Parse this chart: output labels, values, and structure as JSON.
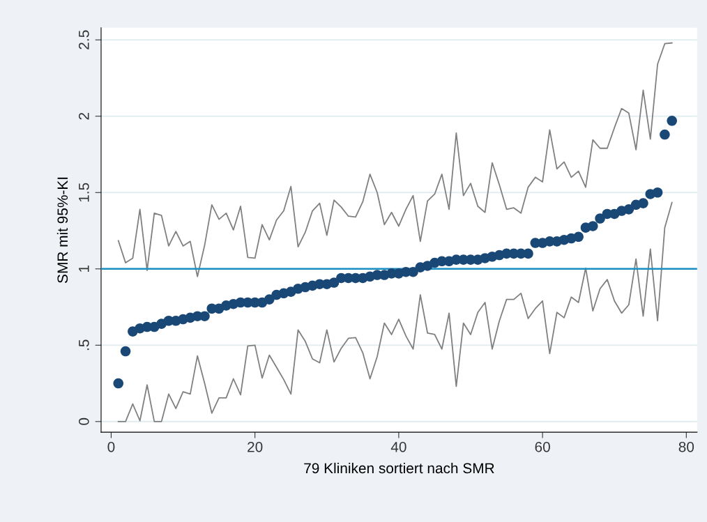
{
  "chart_data": {
    "type": "scatter",
    "xlabel": "79 Kliniken sortiert nach SMR",
    "ylabel": "SMR mit 95%-KI",
    "xlim": [
      -1.4,
      81.5
    ],
    "xticks": [
      0,
      20,
      40,
      60,
      80
    ],
    "ylim": [
      -0.07,
      2.58
    ],
    "yticks": [
      0,
      {
        "value": 0.5,
        "label": ".5"
      },
      1,
      1.5,
      2,
      2.5
    ],
    "grid": "y",
    "legend": false,
    "marker": "circle",
    "x": [
      1,
      2,
      3,
      4,
      5,
      6,
      7,
      8,
      9,
      10,
      11,
      12,
      13,
      14,
      15,
      16,
      17,
      18,
      19,
      20,
      21,
      22,
      23,
      24,
      25,
      26,
      27,
      28,
      29,
      30,
      31,
      32,
      33,
      34,
      35,
      36,
      37,
      38,
      39,
      40,
      41,
      42,
      43,
      44,
      45,
      46,
      47,
      48,
      49,
      50,
      51,
      52,
      53,
      54,
      55,
      56,
      57,
      58,
      59,
      60,
      61,
      62,
      63,
      64,
      65,
      66,
      67,
      68,
      69,
      70,
      71,
      72,
      73,
      74,
      75,
      76,
      77,
      78
    ],
    "series": [
      {
        "type": "line",
        "color": "#808080",
        "marker": "none",
        "line_style": "solid",
        "values": [
          1.185,
          1.04,
          1.07,
          1.39,
          0.99,
          1.365,
          1.35,
          1.15,
          1.245,
          1.15,
          1.18,
          0.95,
          1.155,
          1.42,
          1.325,
          1.365,
          1.255,
          1.41,
          1.075,
          1.07,
          1.29,
          1.19,
          1.32,
          1.38,
          1.54,
          1.145,
          1.24,
          1.38,
          1.43,
          1.22,
          1.45,
          1.405,
          1.345,
          1.34,
          1.44,
          1.62,
          1.5,
          1.29,
          1.37,
          1.28,
          1.39,
          1.48,
          1.18,
          1.445,
          1.49,
          1.62,
          1.39,
          1.89,
          1.48,
          1.56,
          1.41,
          1.37,
          1.695,
          1.55,
          1.39,
          1.4,
          1.365,
          1.535,
          1.6,
          1.57,
          1.91,
          1.655,
          1.7,
          1.6,
          1.64,
          1.535,
          1.845,
          1.79,
          1.79,
          1.925,
          2.05,
          2.02,
          1.78,
          2.17,
          1.85,
          2.34,
          2.475,
          2.48
        ]
      },
      {
        "type": "line",
        "color": "#808080",
        "marker": "none",
        "line_style": "solid",
        "values": [
          0,
          0,
          0.115,
          0.005,
          0.24,
          0,
          0,
          0.18,
          0.085,
          0.195,
          0.18,
          0.43,
          0.25,
          0.055,
          0.155,
          0.155,
          0.28,
          0.175,
          0.495,
          0.5,
          0.285,
          0.435,
          0.355,
          0.275,
          0.18,
          0.6,
          0.525,
          0.41,
          0.385,
          0.6,
          0.39,
          0.48,
          0.545,
          0.55,
          0.45,
          0.28,
          0.425,
          0.645,
          0.57,
          0.67,
          0.56,
          0.475,
          0.83,
          0.58,
          0.57,
          0.475,
          0.71,
          0.23,
          0.645,
          0.57,
          0.715,
          0.78,
          0.475,
          0.66,
          0.8,
          0.8,
          0.84,
          0.675,
          0.74,
          0.79,
          0.445,
          0.715,
          0.68,
          0.815,
          0.78,
          1.005,
          0.725,
          0.87,
          0.93,
          0.79,
          0.71,
          0.765,
          1.065,
          0.69,
          1.13,
          0.66,
          1.27,
          1.435
        ]
      },
      {
        "color": "#1a4876",
        "values": [
          0.25,
          0.46,
          0.59,
          0.61,
          0.62,
          0.62,
          0.64,
          0.66,
          0.66,
          0.67,
          0.68,
          0.69,
          0.69,
          0.74,
          0.74,
          0.76,
          0.77,
          0.78,
          0.78,
          0.78,
          0.78,
          0.8,
          0.83,
          0.84,
          0.85,
          0.87,
          0.88,
          0.89,
          0.9,
          0.9,
          0.91,
          0.94,
          0.94,
          0.94,
          0.94,
          0.95,
          0.96,
          0.96,
          0.97,
          0.97,
          0.98,
          0.98,
          1.01,
          1.02,
          1.04,
          1.05,
          1.05,
          1.06,
          1.06,
          1.06,
          1.06,
          1.07,
          1.08,
          1.09,
          1.1,
          1.1,
          1.1,
          1.1,
          1.17,
          1.17,
          1.18,
          1.18,
          1.19,
          1.2,
          1.21,
          1.27,
          1.28,
          1.33,
          1.36,
          1.36,
          1.38,
          1.39,
          1.42,
          1.43,
          1.49,
          1.5,
          1.88,
          1.97
        ]
      }
    ],
    "ref_lines": [
      {
        "axis": "y",
        "value": 1,
        "color": "#1a8fc4",
        "line_style": "solid"
      }
    ]
  }
}
